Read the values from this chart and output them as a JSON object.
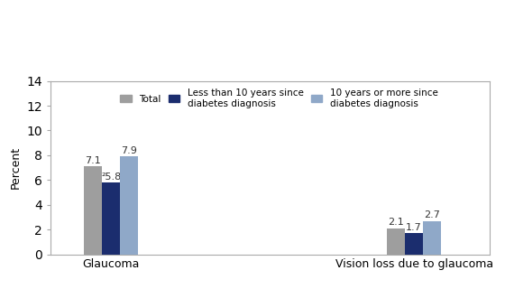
{
  "categories": [
    "Glaucoma",
    "Vision loss due to glaucoma"
  ],
  "series": [
    {
      "label": "Total",
      "values": [
        7.1,
        2.1
      ],
      "color": "#9e9e9e"
    },
    {
      "label": "Less than 10 years since\ndiabetes diagnosis",
      "values": [
        5.8,
        1.7
      ],
      "color": "#1b2d6e"
    },
    {
      "label": "10 years or more since\ndiabetes diagnosis",
      "values": [
        7.9,
        2.7
      ],
      "color": "#8fa8c8"
    }
  ],
  "ylabel": "Percent",
  "ylim": [
    0,
    14
  ],
  "yticks": [
    0,
    2,
    4,
    6,
    8,
    10,
    12,
    14
  ],
  "bar_width": 0.12,
  "value_labels_g": [
    "7.1",
    "²5.8",
    "7.9"
  ],
  "value_labels_v": [
    "2.1",
    "1.7",
    "2.7"
  ],
  "background_color": "#ffffff",
  "legend_fontsize": 7.5,
  "axis_fontsize": 9,
  "value_fontsize": 8
}
